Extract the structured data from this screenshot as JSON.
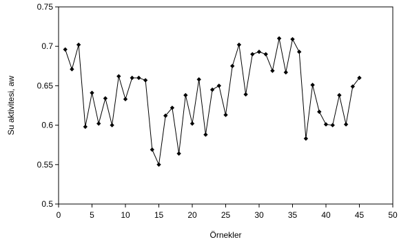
{
  "chart_data": {
    "type": "line",
    "title": "",
    "xlabel": "Örnekler",
    "ylabel": "Su aktivitesi, aw",
    "xlim": [
      0,
      50
    ],
    "ylim": [
      0.5,
      0.75
    ],
    "x_ticks": [
      0,
      5,
      10,
      15,
      20,
      25,
      30,
      35,
      40,
      45,
      50
    ],
    "y_ticks": [
      0.5,
      0.55,
      0.6,
      0.65,
      0.7,
      0.75
    ],
    "x_tick_labels": [
      "0",
      "5",
      "10",
      "15",
      "20",
      "25",
      "30",
      "35",
      "40",
      "45",
      "50"
    ],
    "y_tick_labels": [
      "0.5",
      "0.55",
      "0.6",
      "0.65",
      "0.7",
      "0.75"
    ],
    "grid": false,
    "legend": "none",
    "marker": "diamond",
    "line_color": "#000000",
    "series": [
      {
        "x": [
          1,
          2,
          3,
          4,
          5,
          6,
          7,
          8,
          9,
          10,
          11,
          12,
          13,
          14,
          15,
          16,
          17,
          18,
          19,
          20,
          21,
          22,
          23,
          24,
          25,
          26,
          27,
          28,
          29,
          30,
          31,
          32,
          33,
          34,
          35,
          36,
          37,
          38,
          39,
          40,
          41,
          42,
          43,
          44,
          45
        ],
        "values": [
          0.696,
          0.671,
          0.702,
          0.598,
          0.641,
          0.602,
          0.634,
          0.6,
          0.662,
          0.633,
          0.66,
          0.66,
          0.657,
          0.569,
          0.55,
          0.612,
          0.622,
          0.564,
          0.638,
          0.602,
          0.658,
          0.588,
          0.645,
          0.65,
          0.613,
          0.675,
          0.702,
          0.639,
          0.69,
          0.693,
          0.69,
          0.669,
          0.71,
          0.667,
          0.709,
          0.693,
          0.583,
          0.651,
          0.617,
          0.601,
          0.6,
          0.638,
          0.601,
          0.649,
          0.66
        ]
      }
    ]
  }
}
